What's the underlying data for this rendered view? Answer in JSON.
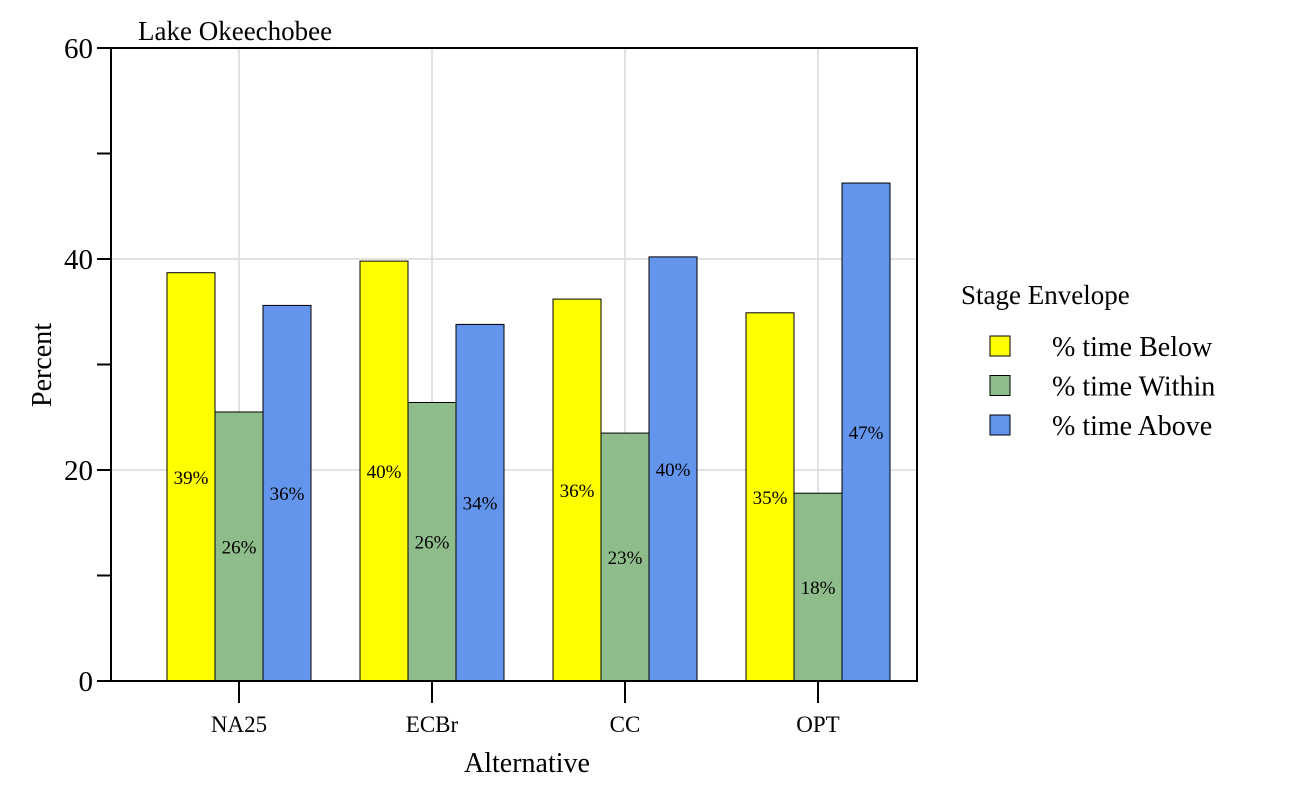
{
  "chart_data": {
    "type": "bar",
    "title": "Lake Okeechobee",
    "xlabel": "Alternative",
    "ylabel": "Percent",
    "ylim": [
      0,
      60
    ],
    "yticks": [
      0,
      20,
      40,
      60
    ],
    "categories": [
      "NA25",
      "ECBr",
      "CC",
      "OPT"
    ],
    "grid": true,
    "legend": {
      "title": "Stage Envelope",
      "position": "right"
    },
    "series": [
      {
        "name": "% time Below",
        "color": "#ffff00",
        "values": [
          38.7,
          39.8,
          36.2,
          34.9
        ],
        "labels": [
          "39%",
          "40%",
          "36%",
          "35%"
        ]
      },
      {
        "name": "% time Within",
        "color": "#8fbc8b",
        "values": [
          25.5,
          26.4,
          23.5,
          17.8
        ],
        "labels": [
          "26%",
          "26%",
          "23%",
          "18%"
        ]
      },
      {
        "name": "% time Above",
        "color": "#6495ed",
        "values": [
          35.6,
          33.8,
          40.2,
          47.2
        ],
        "labels": [
          "36%",
          "34%",
          "40%",
          "47%"
        ]
      }
    ]
  }
}
